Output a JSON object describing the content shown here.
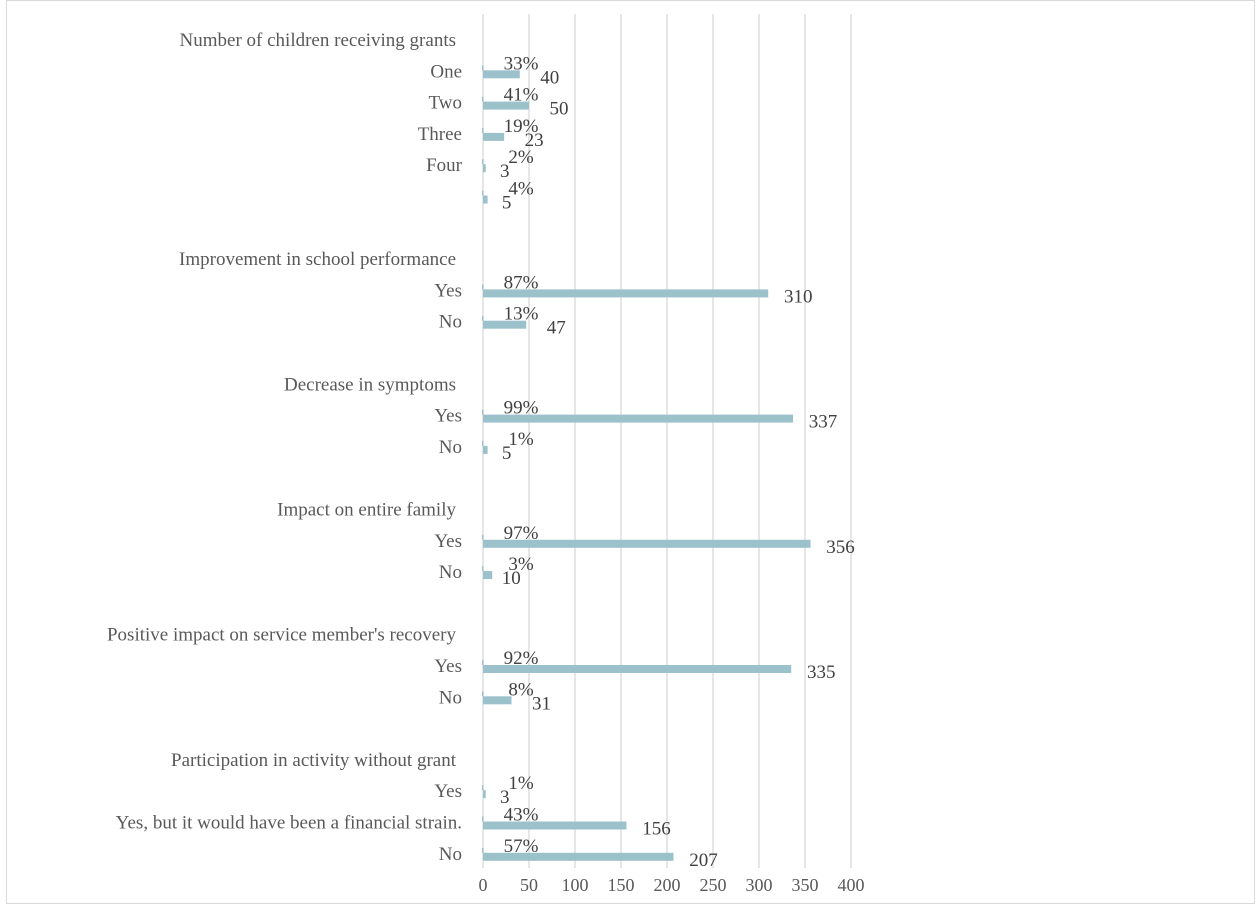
{
  "chart_data": {
    "type": "bar",
    "orientation": "horizontal",
    "bar_color": "#9bc1cb",
    "gridline_color": "#d9d9d9",
    "label_color": "#595959",
    "xlim": [
      0,
      400
    ],
    "x_ticks": [
      0,
      50,
      100,
      150,
      200,
      250,
      300,
      350,
      400
    ],
    "grid": true,
    "legend": "none",
    "rows": [
      {
        "kind": "header",
        "label": "Number of children receiving grants"
      },
      {
        "kind": "bar",
        "label": "One",
        "value": 40,
        "percent": "33%"
      },
      {
        "kind": "bar",
        "label": "Two",
        "value": 50,
        "percent": "41%"
      },
      {
        "kind": "bar",
        "label": "Three",
        "value": 23,
        "percent": "19%"
      },
      {
        "kind": "bar",
        "label": "Four",
        "value": 3,
        "percent": "2%"
      },
      {
        "kind": "bar",
        "label": "",
        "value": 5,
        "percent": "4%"
      },
      {
        "kind": "gap"
      },
      {
        "kind": "header",
        "label": "Improvement in school performance"
      },
      {
        "kind": "bar",
        "label": "Yes",
        "value": 310,
        "percent": "87%"
      },
      {
        "kind": "bar",
        "label": "No",
        "value": 47,
        "percent": "13%"
      },
      {
        "kind": "gap"
      },
      {
        "kind": "header",
        "label": "Decrease in symptoms"
      },
      {
        "kind": "bar",
        "label": "Yes",
        "value": 337,
        "percent": "99%"
      },
      {
        "kind": "bar",
        "label": "No",
        "value": 5,
        "percent": "1%"
      },
      {
        "kind": "gap"
      },
      {
        "kind": "header",
        "label": "Impact on entire family"
      },
      {
        "kind": "bar",
        "label": "Yes",
        "value": 356,
        "percent": "97%"
      },
      {
        "kind": "bar",
        "label": "No",
        "value": 10,
        "percent": "3%"
      },
      {
        "kind": "gap"
      },
      {
        "kind": "header",
        "label": "Positive impact on service member's recovery"
      },
      {
        "kind": "bar",
        "label": "Yes",
        "value": 335,
        "percent": "92%"
      },
      {
        "kind": "bar",
        "label": "No",
        "value": 31,
        "percent": "8%"
      },
      {
        "kind": "gap"
      },
      {
        "kind": "header",
        "label": "Participation in activity without grant"
      },
      {
        "kind": "bar",
        "label": "Yes",
        "value": 3,
        "percent": "1%"
      },
      {
        "kind": "bar",
        "label": "Yes, but it would have been a financial strain.",
        "value": 156,
        "percent": "43%"
      },
      {
        "kind": "bar",
        "label": "No",
        "value": 207,
        "percent": "57%"
      }
    ]
  }
}
